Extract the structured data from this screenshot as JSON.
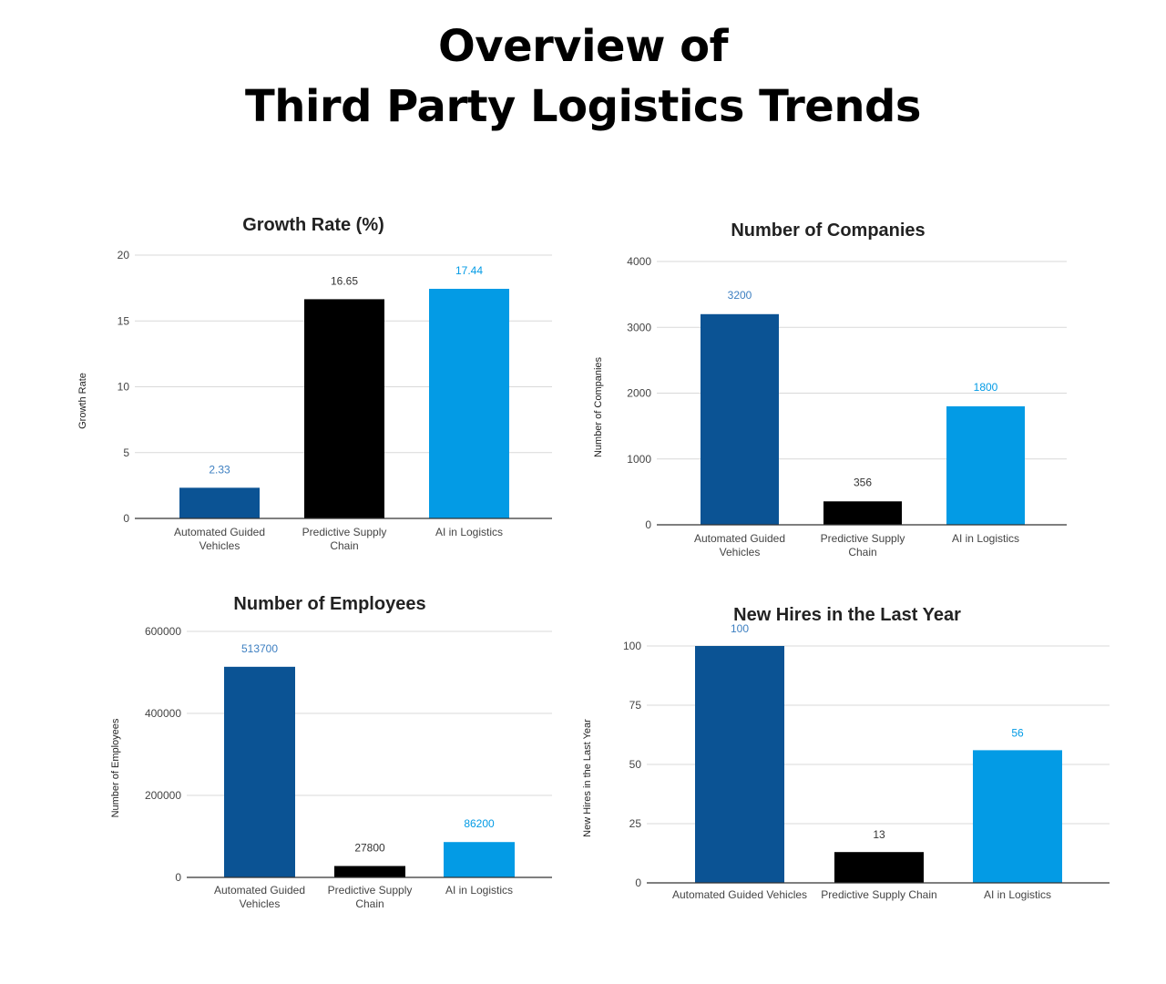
{
  "page": {
    "title_line_1": "Overview of",
    "title_line_2": "Third Party Logistics Trends"
  },
  "colors": {
    "automated_guided_vehicles": "#0b5394",
    "predictive_supply_chain": "#000000",
    "ai_in_logistics": "#039be5",
    "grid": "#d9d9d9",
    "axis": "#333333",
    "tick_text": "#444444"
  },
  "chart_data": [
    {
      "id": "growth-rate",
      "type": "bar",
      "title": "Growth Rate (%)",
      "xlabel": "",
      "ylabel": "Growth Rate",
      "categories": [
        [
          "Automated Guided",
          "Vehicles"
        ],
        [
          "Predictive Supply",
          "Chain"
        ],
        [
          "AI in Logistics"
        ]
      ],
      "values": [
        2.33,
        16.65,
        17.44
      ],
      "value_labels": [
        "2.33",
        "16.65",
        "17.44"
      ],
      "label_colors": [
        "#3d7fc1",
        "#333333",
        "#039be5"
      ],
      "ylim": [
        0,
        20
      ],
      "yticks": [
        0,
        5,
        10,
        15,
        20
      ],
      "grid": true,
      "legend": "none"
    },
    {
      "id": "number-of-companies",
      "type": "bar",
      "title": "Number of Companies",
      "xlabel": "",
      "ylabel": "Number of Companies",
      "categories": [
        [
          "Automated Guided",
          "Vehicles"
        ],
        [
          "Predictive Supply",
          "Chain"
        ],
        [
          "AI in Logistics"
        ]
      ],
      "values": [
        3200,
        356,
        1800
      ],
      "value_labels": [
        "3200",
        "356",
        "1800"
      ],
      "label_colors": [
        "#3d7fc1",
        "#333333",
        "#039be5"
      ],
      "ylim": [
        0,
        4000
      ],
      "yticks": [
        0,
        1000,
        2000,
        3000,
        4000
      ],
      "grid": true,
      "legend": "none"
    },
    {
      "id": "number-of-employees",
      "type": "bar",
      "title": "Number of Employees",
      "xlabel": "",
      "ylabel": "Number of Employees",
      "categories": [
        [
          "Automated Guided",
          "Vehicles"
        ],
        [
          "Predictive Supply",
          "Chain"
        ],
        [
          "AI in Logistics"
        ]
      ],
      "values": [
        513700,
        27800,
        86200
      ],
      "value_labels": [
        "513700",
        "27800",
        "86200"
      ],
      "label_colors": [
        "#3d7fc1",
        "#333333",
        "#039be5"
      ],
      "ylim": [
        0,
        600000
      ],
      "yticks": [
        0,
        200000,
        400000,
        600000
      ],
      "grid": true,
      "legend": "none"
    },
    {
      "id": "new-hires",
      "type": "bar",
      "title": "New Hires in the Last Year",
      "xlabel": "",
      "ylabel": "New Hires in the Last Year",
      "categories": [
        [
          "Automated Guided Vehicles"
        ],
        [
          "Predictive Supply Chain"
        ],
        [
          "AI in Logistics"
        ]
      ],
      "values": [
        100,
        13,
        56
      ],
      "value_labels": [
        "100",
        "13",
        "56"
      ],
      "label_colors": [
        "#3d7fc1",
        "#333333",
        "#039be5"
      ],
      "ylim": [
        0,
        100
      ],
      "yticks": [
        0,
        25,
        50,
        75,
        100
      ],
      "grid": true,
      "legend": "none"
    }
  ]
}
